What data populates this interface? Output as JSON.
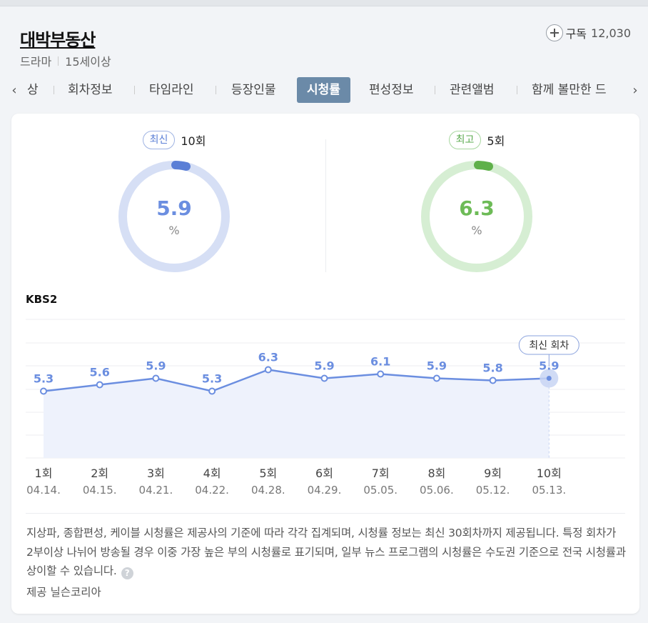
{
  "header": {
    "title": "대박부동산",
    "genre": "드라마",
    "rating": "15세이상",
    "subscribe_label": "구독",
    "subscribe_count": "12,030"
  },
  "tabs": [
    {
      "label": "상",
      "active": false
    },
    {
      "label": "회차정보",
      "active": false
    },
    {
      "label": "타임라인",
      "active": false
    },
    {
      "label": "등장인물",
      "active": false
    },
    {
      "label": "시청률",
      "active": true
    },
    {
      "label": "편성정보",
      "active": false
    },
    {
      "label": "관련앨범",
      "active": false
    },
    {
      "label": "함께 볼만한 드",
      "active": false
    }
  ],
  "summary": {
    "latest": {
      "badge": "최신",
      "episode": "10회",
      "value": "5.9",
      "unit": "%",
      "color": "#6b8ee0",
      "track": "#d6dff5"
    },
    "best": {
      "badge": "최고",
      "episode": "5회",
      "value": "6.3",
      "unit": "%",
      "color": "#6dbb57",
      "track": "#d6eed3"
    }
  },
  "channel": "KBS2",
  "chart_data": {
    "type": "line",
    "categories": [
      "1회",
      "2회",
      "3회",
      "4회",
      "5회",
      "6회",
      "7회",
      "8회",
      "9회",
      "10회"
    ],
    "dates": [
      "04.14.",
      "04.15.",
      "04.21.",
      "04.22.",
      "04.28.",
      "04.29.",
      "05.05.",
      "05.06.",
      "05.12.",
      "05.13."
    ],
    "series": [
      {
        "values": [
          5.3,
          5.6,
          5.9,
          5.3,
          6.3,
          5.9,
          6.1,
          5.9,
          5.8,
          5.9
        ]
      }
    ],
    "latest_label": "최신 회차",
    "line_color": "#6b8ee0",
    "fill_color": "#eef2fc",
    "grid": true
  },
  "notice": "지상파, 종합편성, 케이블 시청률은 제공사의 기준에 따라 각각 집계되며, 시청률 정보는 최신 30회차까지 제공됩니다. 특정 회차가 2부이상 나뉘어 방송될 경우 이중 가장 높은 부의 시청률로 표기되며, 일부 뉴스 프로그램의 시청률은 수도권 기준으로 전국 시청률과 상이할 수 있습니다.",
  "help_icon": "question-icon",
  "provider": "제공 닐슨코리아"
}
